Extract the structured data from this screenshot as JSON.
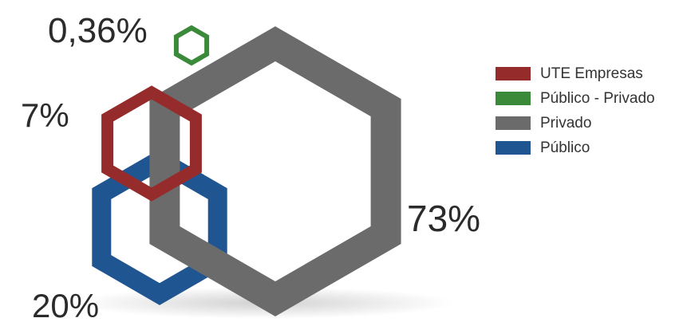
{
  "chart_data": {
    "type": "bubble",
    "shape": "hexagon-outline",
    "series": [
      {
        "name": "UTE Empresas",
        "value": 7,
        "label": "7%",
        "color": "#962b2c"
      },
      {
        "name": "Público - Privado",
        "value": 0.36,
        "label": "0,36%",
        "color": "#3a8a3a"
      },
      {
        "name": "Privado",
        "value": 73,
        "label": "73%",
        "color": "#6b6b6b"
      },
      {
        "name": "Público",
        "value": 20,
        "label": "20%",
        "color": "#1f5692"
      }
    ],
    "legend_position": "right"
  }
}
